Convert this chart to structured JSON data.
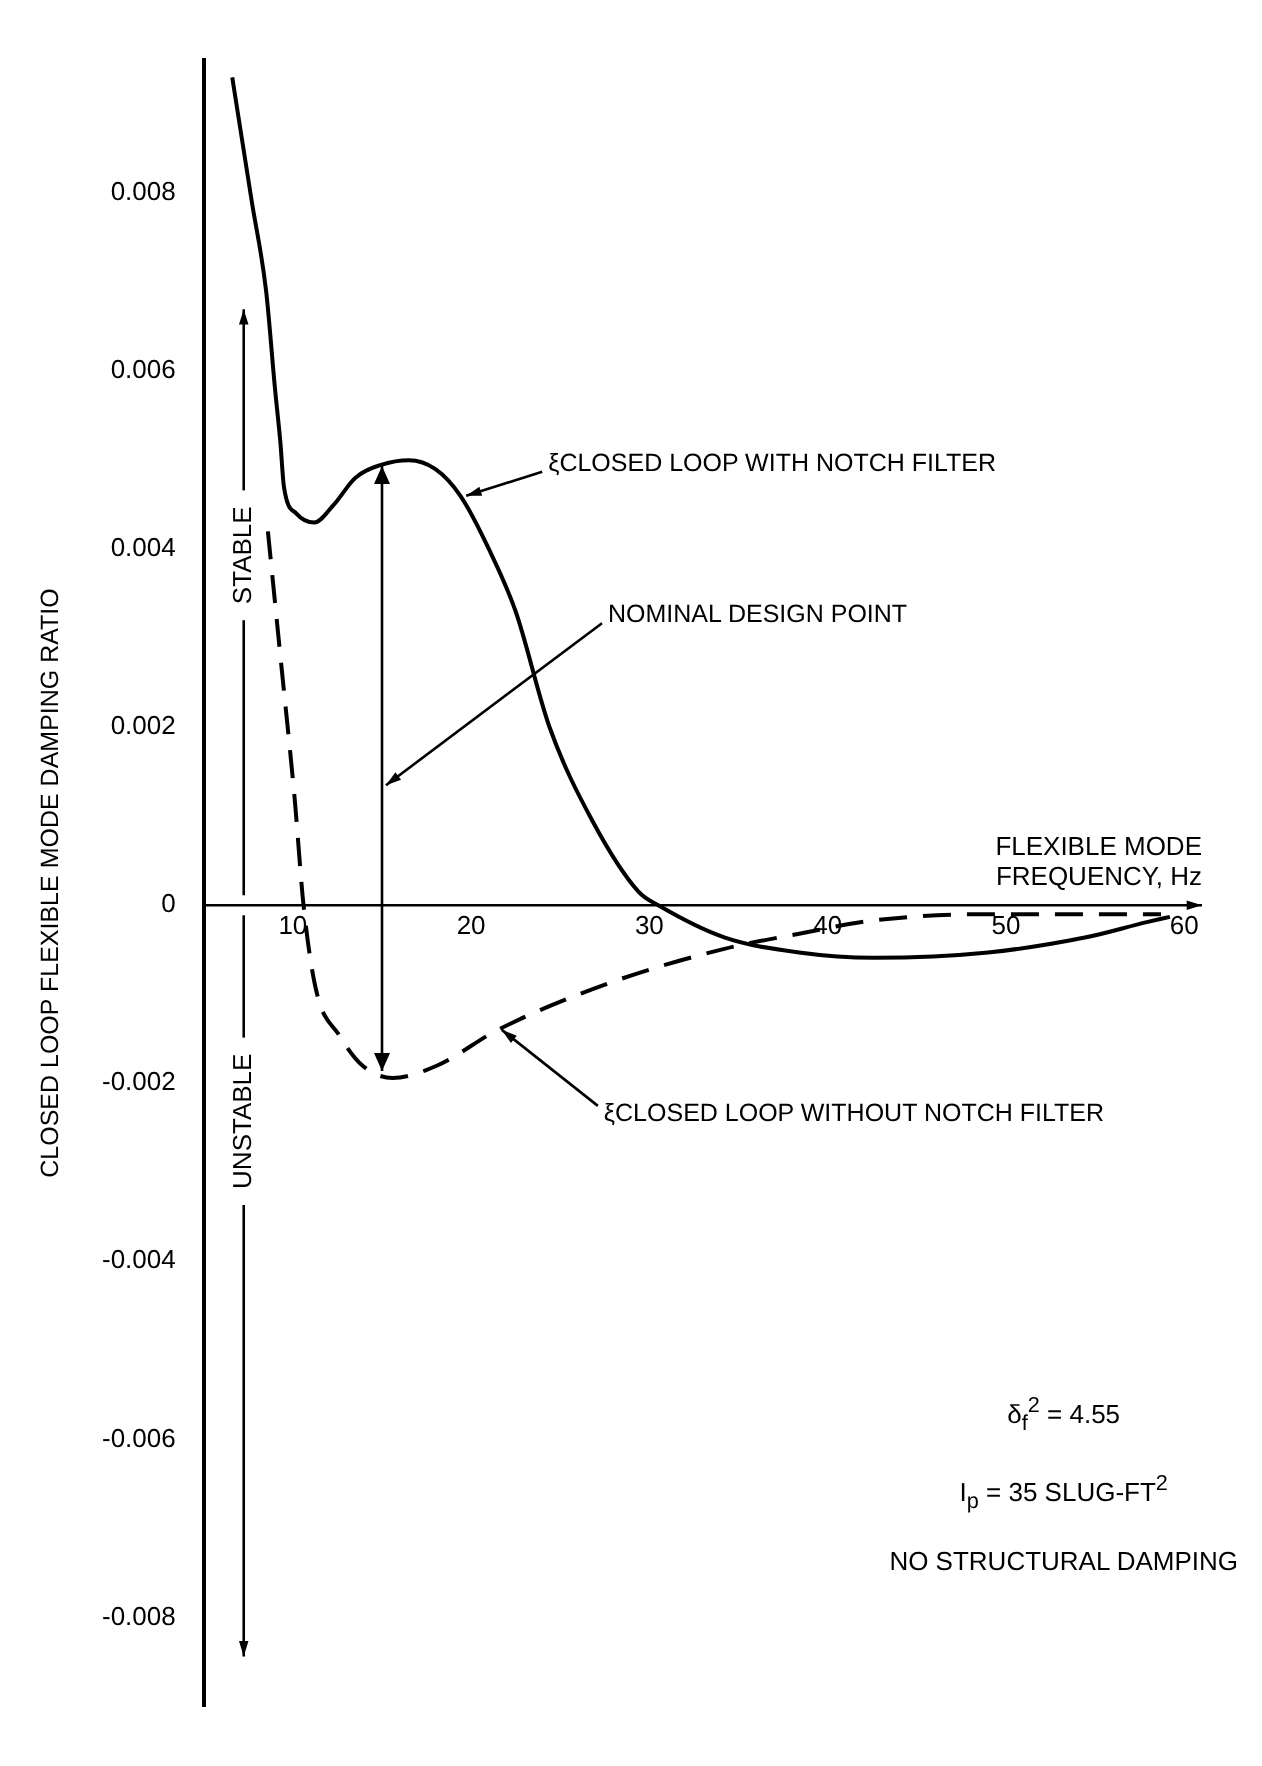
{
  "chart_data": {
    "type": "line",
    "xlabel": "FLEXIBLE MODE FREQUENCY, Hz",
    "ylabel": "CLOSED LOOP FLEXIBLE MODE DAMPING RATIO",
    "xlim": [
      5,
      61
    ],
    "xticks": [
      10,
      20,
      30,
      40,
      50,
      60
    ],
    "ylim": [
      -0.009,
      0.0095
    ],
    "yticks": [
      -0.008,
      -0.006,
      -0.004,
      -0.002,
      0,
      0.002,
      0.004,
      0.006,
      0.008
    ],
    "grid": false,
    "legend": false,
    "marker": "none",
    "series": [
      {
        "color": "#000000",
        "line_style": "solid",
        "x": [
          6.6,
          7.7,
          8.5,
          9.0,
          9.3,
          9.5,
          10.2,
          11.2,
          12.3,
          13.5,
          15.0,
          16.5,
          18.0,
          19.4,
          21.0,
          22.5,
          24.4,
          26.8,
          29.4,
          30.5,
          34.2,
          38.4,
          42.6,
          49,
          54.5,
          57.9,
          59.2
        ],
        "values": [
          0.0093,
          0.0079,
          0.0069,
          0.0058,
          0.0052,
          0.0047,
          0.0044,
          0.0043,
          0.0045,
          0.0048,
          0.00495,
          0.005,
          0.0049,
          0.0046,
          0.004,
          0.0033,
          0.002,
          0.00095,
          0.00015,
          0,
          -0.00036,
          -0.00053,
          -0.00059,
          -0.00053,
          -0.00036,
          -0.00019,
          -0.00013
        ]
      },
      {
        "color": "#000000",
        "line_style": "dashed",
        "x": [
          8.6,
          9.3,
          10.1,
          10.6,
          11.3,
          12.6,
          13.9,
          15.6,
          18.1,
          21.5,
          27.8,
          34.2,
          38.4,
          42.6,
          49,
          55.3,
          58.7
        ],
        "values": [
          0.0042,
          0.0028,
          0.0012,
          0,
          -0.00095,
          -0.00146,
          -0.0018,
          -0.00194,
          -0.0018,
          -0.0014,
          -0.00087,
          -0.00049,
          -0.00032,
          -0.00017,
          -0.0001,
          -0.0001,
          -0.0001
        ]
      }
    ],
    "ref_lines": [
      {
        "axis": "x",
        "value": 15,
        "label": "NOMINAL DESIGN POINT"
      }
    ],
    "annotations": [
      {
        "text": "ξCLOSED LOOP WITH NOTCH FILTER",
        "x": 19.5,
        "y": 0.0046
      },
      {
        "text": "ξCLOSED LOOP WITHOUT NOTCH FILTER",
        "x": 21.5,
        "y": -0.0014
      },
      "STABLE",
      "UNSTABLE",
      "δ$_{f}$$^{2}$ = 4.55",
      "I$_{p}$ = 35 SLUG-FT$^{2}$",
      "NO STRUCTURAL DAMPING"
    ]
  }
}
